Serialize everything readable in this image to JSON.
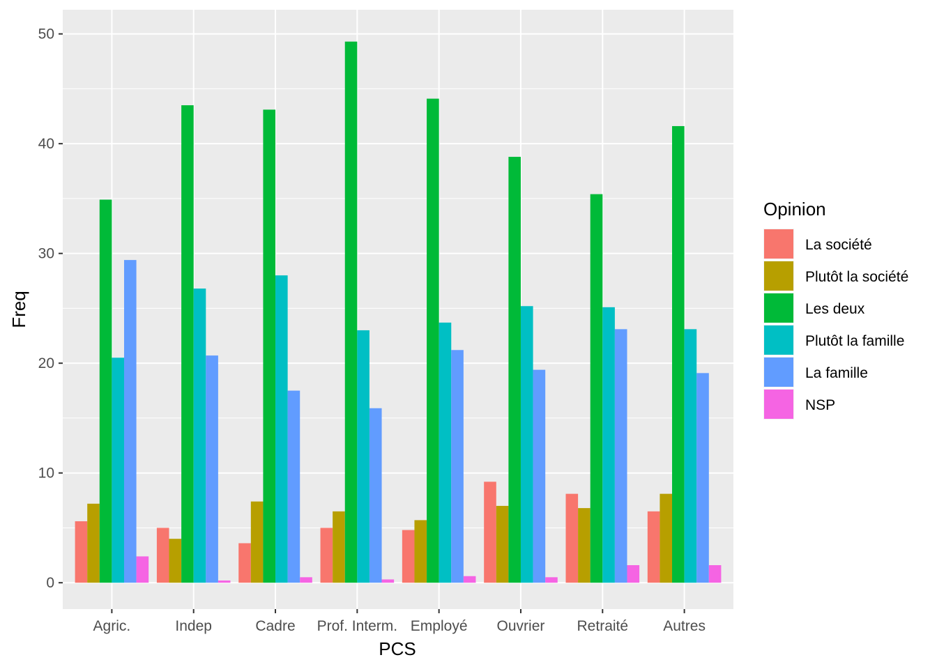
{
  "chart_data": {
    "type": "bar",
    "xlabel": "PCS",
    "ylabel": "Freq",
    "ylim": [
      -2.4,
      52.2
    ],
    "yticks": [
      0,
      10,
      20,
      30,
      40,
      50
    ],
    "categories": [
      "Agric.",
      "Indep",
      "Cadre",
      "Prof. Interm.",
      "Employé",
      "Ouvrier",
      "Retraité",
      "Autres"
    ],
    "legend": {
      "title": "Opinion",
      "position": "right"
    },
    "series": [
      {
        "name": "La société",
        "color": "#F8766D",
        "values": [
          5.6,
          5.0,
          3.6,
          5.0,
          4.8,
          9.2,
          8.1,
          6.5
        ]
      },
      {
        "name": "Plutôt la société",
        "color": "#B79F00",
        "values": [
          7.2,
          4.0,
          7.4,
          6.5,
          5.7,
          7.0,
          6.8,
          8.1
        ]
      },
      {
        "name": "Les deux",
        "color": "#00BA38",
        "values": [
          34.9,
          43.5,
          43.1,
          49.3,
          44.1,
          38.8,
          35.4,
          41.6
        ]
      },
      {
        "name": "Plutôt la famille",
        "color": "#00BFC4",
        "values": [
          20.5,
          26.8,
          28.0,
          23.0,
          23.7,
          25.2,
          25.1,
          23.1
        ]
      },
      {
        "name": "La famille",
        "color": "#619CFF",
        "values": [
          29.4,
          20.7,
          17.5,
          15.9,
          21.2,
          19.4,
          23.1,
          19.1
        ]
      },
      {
        "name": "NSP",
        "color": "#F564E3",
        "values": [
          2.4,
          0.2,
          0.5,
          0.3,
          0.6,
          0.5,
          1.6,
          1.6
        ]
      }
    ]
  }
}
